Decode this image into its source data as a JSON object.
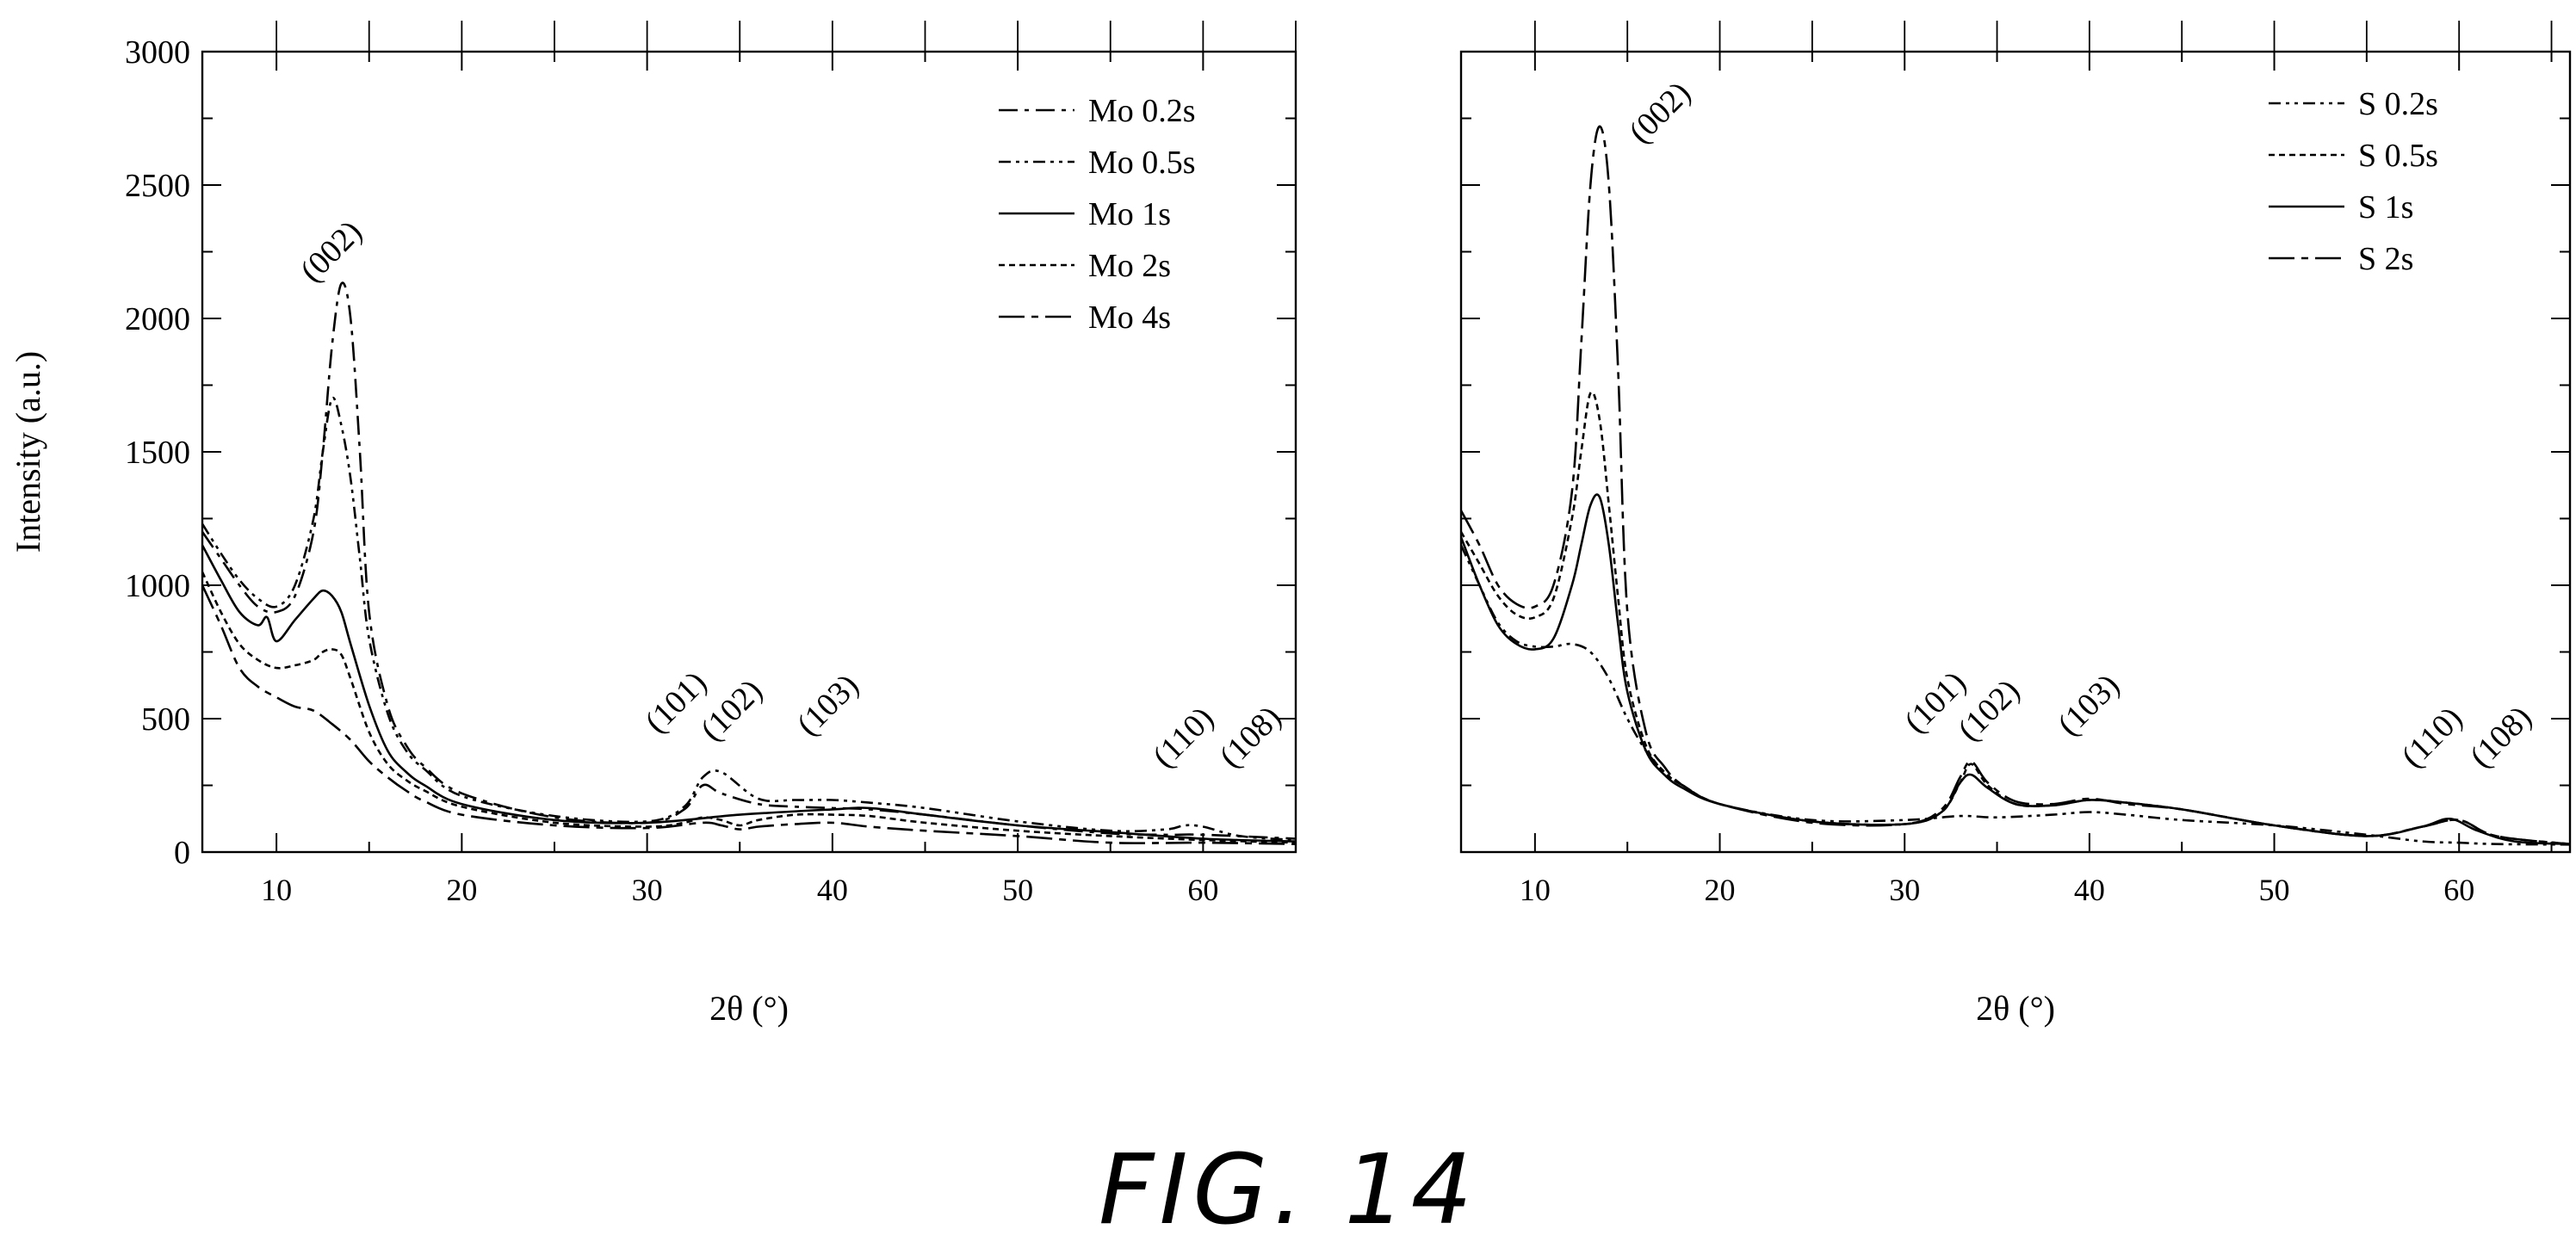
{
  "figure_label": "FIG. 14",
  "chart_data": [
    {
      "type": "line",
      "ylabel": "Intensity (a.u.)",
      "xlabel": "2θ (°)",
      "xlim": [
        6,
        65
      ],
      "ylim": [
        0,
        3000
      ],
      "xticks": [
        "10",
        "20",
        "30",
        "40",
        "50",
        "60"
      ],
      "yticks": [
        "0",
        "500",
        "1000",
        "1500",
        "2000",
        "2500",
        "3000"
      ],
      "grid": false,
      "legend_position": "top-right",
      "annotations": [
        {
          "text": "(002)",
          "x": 12.0,
          "y": 2130
        },
        {
          "text": "(101)",
          "x": 30.6,
          "y": 440
        },
        {
          "text": "(102)",
          "x": 33.6,
          "y": 410
        },
        {
          "text": "(103)",
          "x": 38.8,
          "y": 430
        },
        {
          "text": "(110)",
          "x": 58.0,
          "y": 310
        },
        {
          "text": "(108)",
          "x": 61.6,
          "y": 310
        }
      ],
      "series": [
        {
          "name": "Mo 0.2s",
          "dash": "22,8,5,8",
          "x": [
            6,
            7,
            8,
            9,
            10,
            11,
            12,
            12.5,
            13,
            13.5,
            14,
            14.5,
            15,
            16,
            17,
            18,
            20,
            25,
            30,
            32,
            33,
            34,
            36,
            38,
            40,
            42,
            45,
            50,
            55,
            58,
            60,
            65
          ],
          "y": [
            1200,
            1100,
            1000,
            920,
            900,
            960,
            1200,
            1500,
            1900,
            2130,
            2000,
            1500,
            900,
            550,
            400,
            320,
            220,
            130,
            110,
            160,
            250,
            220,
            180,
            170,
            165,
            160,
            140,
            100,
            70,
            65,
            65,
            50
          ]
        },
        {
          "name": "Mo 0.5s",
          "dash": "14,6,4,6,4,6",
          "x": [
            6,
            7,
            8,
            9,
            10,
            11,
            12,
            12.5,
            13,
            13.5,
            14,
            14.5,
            15,
            16,
            17,
            18,
            20,
            25,
            30,
            32,
            33,
            34,
            36,
            38,
            40,
            42,
            45,
            50,
            55,
            58,
            59,
            60,
            62,
            65
          ],
          "y": [
            1230,
            1120,
            1020,
            950,
            920,
            1000,
            1250,
            1500,
            1700,
            1600,
            1400,
            1100,
            800,
            520,
            380,
            310,
            210,
            135,
            115,
            170,
            280,
            300,
            200,
            195,
            195,
            185,
            165,
            115,
            80,
            85,
            100,
            95,
            60,
            45
          ]
        },
        {
          "name": "Mo 1s",
          "dash": "",
          "x": [
            6,
            7,
            8,
            9,
            9.5,
            10,
            11,
            12,
            12.5,
            13,
            13.5,
            14,
            15,
            16,
            17,
            18,
            20,
            25,
            30,
            35,
            40,
            42,
            45,
            50,
            55,
            60,
            65
          ],
          "y": [
            1150,
            1020,
            900,
            850,
            880,
            790,
            870,
            950,
            980,
            960,
            900,
            780,
            550,
            380,
            300,
            250,
            180,
            120,
            110,
            140,
            160,
            165,
            140,
            100,
            75,
            50,
            40
          ]
        },
        {
          "name": "Mo 2s",
          "dash": "7,5",
          "x": [
            6,
            7,
            8,
            9,
            10,
            11,
            12,
            12.5,
            13,
            13.5,
            14,
            15,
            16,
            17,
            18,
            20,
            25,
            30,
            32,
            33,
            34,
            35,
            36,
            38,
            40,
            42,
            45,
            50,
            55,
            60,
            65
          ],
          "y": [
            1050,
            900,
            780,
            720,
            690,
            700,
            720,
            750,
            760,
            740,
            650,
            450,
            330,
            270,
            230,
            170,
            110,
            95,
            110,
            130,
            120,
            100,
            120,
            140,
            140,
            135,
            110,
            80,
            60,
            45,
            35
          ]
        },
        {
          "name": "Mo 4s",
          "dash": "30,8,8,8",
          "x": [
            6,
            7,
            8,
            9,
            10,
            11,
            12,
            13,
            14,
            15,
            16,
            17,
            18,
            20,
            25,
            30,
            33,
            34,
            35,
            36,
            38,
            40,
            42,
            45,
            50,
            55,
            60,
            65
          ],
          "y": [
            1000,
            850,
            690,
            620,
            580,
            545,
            530,
            480,
            420,
            340,
            280,
            230,
            190,
            140,
            100,
            90,
            110,
            100,
            85,
            95,
            105,
            110,
            95,
            80,
            60,
            35,
            35,
            30
          ]
        }
      ]
    },
    {
      "type": "line",
      "ylabel": "",
      "xlabel": "2θ (°)",
      "xlim": [
        6,
        66
      ],
      "ylim": [
        0,
        3000
      ],
      "xticks": [
        "10",
        "20",
        "30",
        "40",
        "50",
        "60"
      ],
      "yticks": [],
      "grid": false,
      "legend_position": "top-right",
      "annotations": [
        {
          "text": "(002)",
          "x": 15.8,
          "y": 2650
        },
        {
          "text": "(101)",
          "x": 30.7,
          "y": 440
        },
        {
          "text": "(102)",
          "x": 33.6,
          "y": 410
        },
        {
          "text": "(103)",
          "x": 39.0,
          "y": 430
        },
        {
          "text": "(110)",
          "x": 57.6,
          "y": 310
        },
        {
          "text": "(108)",
          "x": 61.3,
          "y": 310
        }
      ],
      "series": [
        {
          "name": "S 0.2s",
          "dash": "14,6,4,6,4,6",
          "x": [
            6,
            7,
            8,
            9,
            10,
            11,
            12,
            13,
            14,
            15,
            16,
            17,
            18,
            20,
            25,
            30,
            33,
            35,
            38,
            40,
            42,
            45,
            50,
            55,
            58,
            60,
            62,
            66
          ],
          "y": [
            1150,
            1000,
            860,
            790,
            770,
            770,
            780,
            750,
            650,
            500,
            380,
            300,
            250,
            180,
            120,
            120,
            135,
            130,
            140,
            150,
            140,
            120,
            100,
            65,
            40,
            35,
            30,
            28
          ]
        },
        {
          "name": "S 0.5s",
          "dash": "7,5",
          "x": [
            6,
            7,
            8,
            9,
            10,
            11,
            12,
            12.5,
            13,
            13.5,
            14,
            14.5,
            15,
            16,
            17,
            18,
            20,
            25,
            30,
            32,
            33,
            33.6,
            34.5,
            36,
            38,
            40,
            42,
            45,
            50,
            55,
            58,
            60,
            62,
            66
          ],
          "y": [
            1200,
            1080,
            960,
            890,
            880,
            950,
            1250,
            1500,
            1720,
            1620,
            1300,
            950,
            650,
            400,
            300,
            250,
            180,
            115,
            105,
            150,
            260,
            330,
            250,
            180,
            175,
            195,
            185,
            160,
            100,
            60,
            95,
            120,
            60,
            30
          ]
        },
        {
          "name": "S 1s",
          "dash": "",
          "x": [
            6,
            7,
            8,
            9,
            10,
            11,
            12,
            12.5,
            13,
            13.5,
            14,
            14.5,
            15,
            16,
            17,
            18,
            20,
            25,
            30,
            32,
            33,
            33.6,
            34.5,
            36,
            38,
            40,
            42,
            45,
            50,
            55,
            58,
            59.5,
            61,
            63,
            66
          ],
          "y": [
            1180,
            1000,
            850,
            780,
            760,
            800,
            1000,
            1150,
            1300,
            1330,
            1150,
            850,
            600,
            380,
            290,
            240,
            180,
            115,
            105,
            150,
            260,
            290,
            240,
            180,
            175,
            195,
            185,
            160,
            100,
            60,
            95,
            125,
            80,
            40,
            30
          ]
        },
        {
          "name": "S 2s",
          "dash": "30,8,8,8",
          "x": [
            6,
            7,
            8,
            9,
            10,
            11,
            12,
            12.5,
            13,
            13.5,
            14,
            14.5,
            15,
            16,
            17,
            18,
            20,
            25,
            30,
            32,
            33,
            33.6,
            34.5,
            36,
            38,
            40,
            42,
            45,
            50,
            55,
            58,
            60,
            62,
            66
          ],
          "y": [
            1280,
            1150,
            1000,
            930,
            920,
            1000,
            1350,
            1900,
            2500,
            2720,
            2500,
            1800,
            900,
            450,
            320,
            250,
            180,
            110,
            105,
            160,
            280,
            340,
            260,
            190,
            180,
            200,
            180,
            160,
            100,
            60,
            95,
            120,
            60,
            30
          ]
        }
      ]
    }
  ]
}
